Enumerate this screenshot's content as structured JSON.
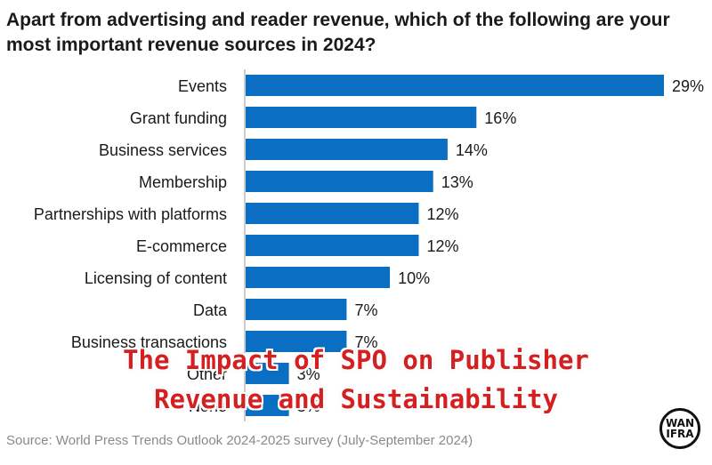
{
  "chart_data": {
    "type": "bar",
    "orientation": "horizontal",
    "title": "Apart from advertising and reader revenue, which of the following are your most important revenue sources in 2024?",
    "categories": [
      "Events",
      "Grant funding",
      "Business services",
      "Membership",
      "Partnerships with platforms",
      "E-commerce",
      "Licensing of content",
      "Data",
      "Business transactions",
      "Other",
      "None"
    ],
    "values": [
      29,
      16,
      14,
      13,
      12,
      12,
      10,
      7,
      7,
      3,
      3
    ],
    "value_labels": [
      "29%",
      "16%",
      "14%",
      "13%",
      "12%",
      "12%",
      "10%",
      "7%",
      "7%",
      "3%",
      "3%"
    ],
    "unit": "%",
    "xlim": [
      0,
      29
    ],
    "grid": false,
    "legend": "none",
    "bar_color": "#0a6fc2"
  },
  "overlay": {
    "line1": "The Impact of SPO on Publisher",
    "line2": "Revenue and Sustainability",
    "color": "#d42020"
  },
  "source": "Source: World Press Trends Outlook 2024-2025 survey (July-September 2024)",
  "logo": {
    "line1": "WAN",
    "line2": "IFRA"
  }
}
